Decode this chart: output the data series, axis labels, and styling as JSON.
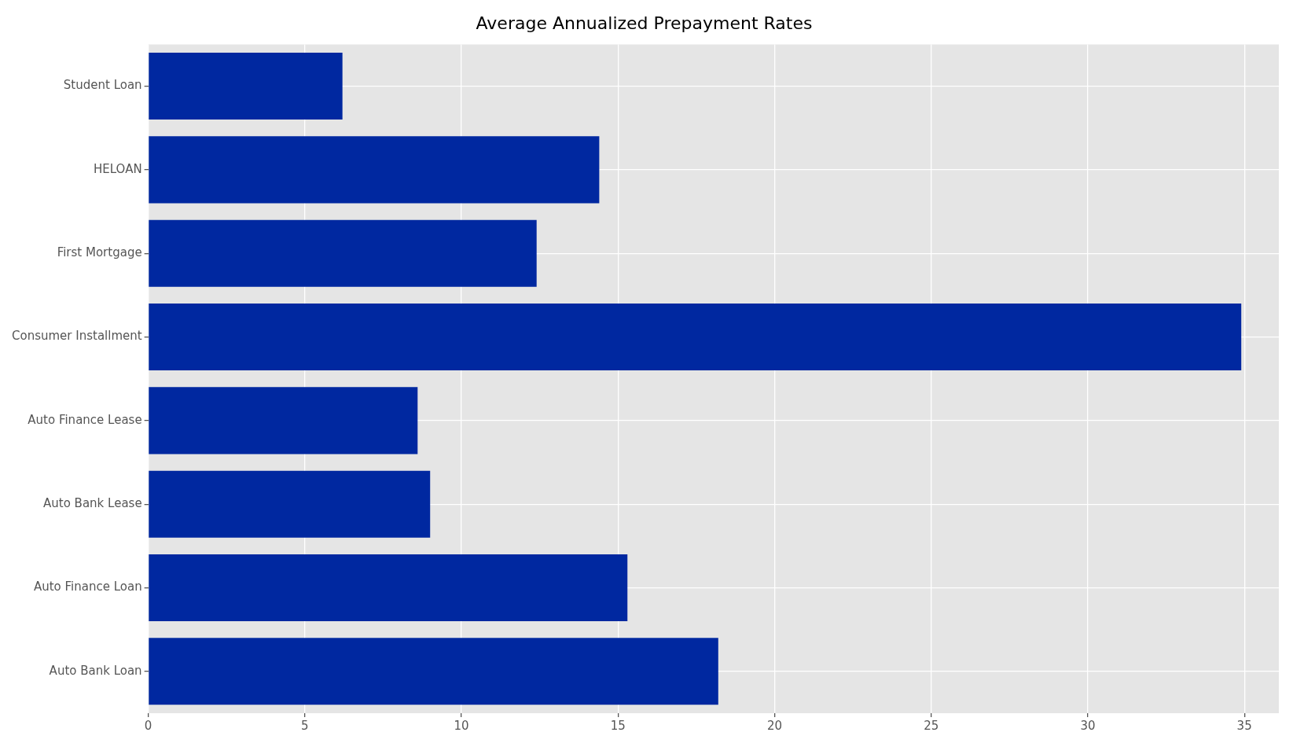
{
  "chart_data": {
    "type": "bar",
    "orientation": "horizontal",
    "title": "Average Annualized Prepayment Rates",
    "categories": [
      "Student Loan",
      "HELOAN",
      "First Mortgage",
      "Consumer Installment",
      "Auto Finance Lease",
      "Auto Bank Lease",
      "Auto Finance Loan",
      "Auto Bank Loan"
    ],
    "values": [
      6.2,
      14.4,
      12.4,
      34.9,
      8.6,
      9.0,
      15.3,
      18.2
    ],
    "color": "#0028a0",
    "xlim": [
      0,
      36.1
    ],
    "xticks": [
      0,
      5,
      10,
      15,
      20,
      25,
      30,
      35
    ],
    "grid": true
  }
}
